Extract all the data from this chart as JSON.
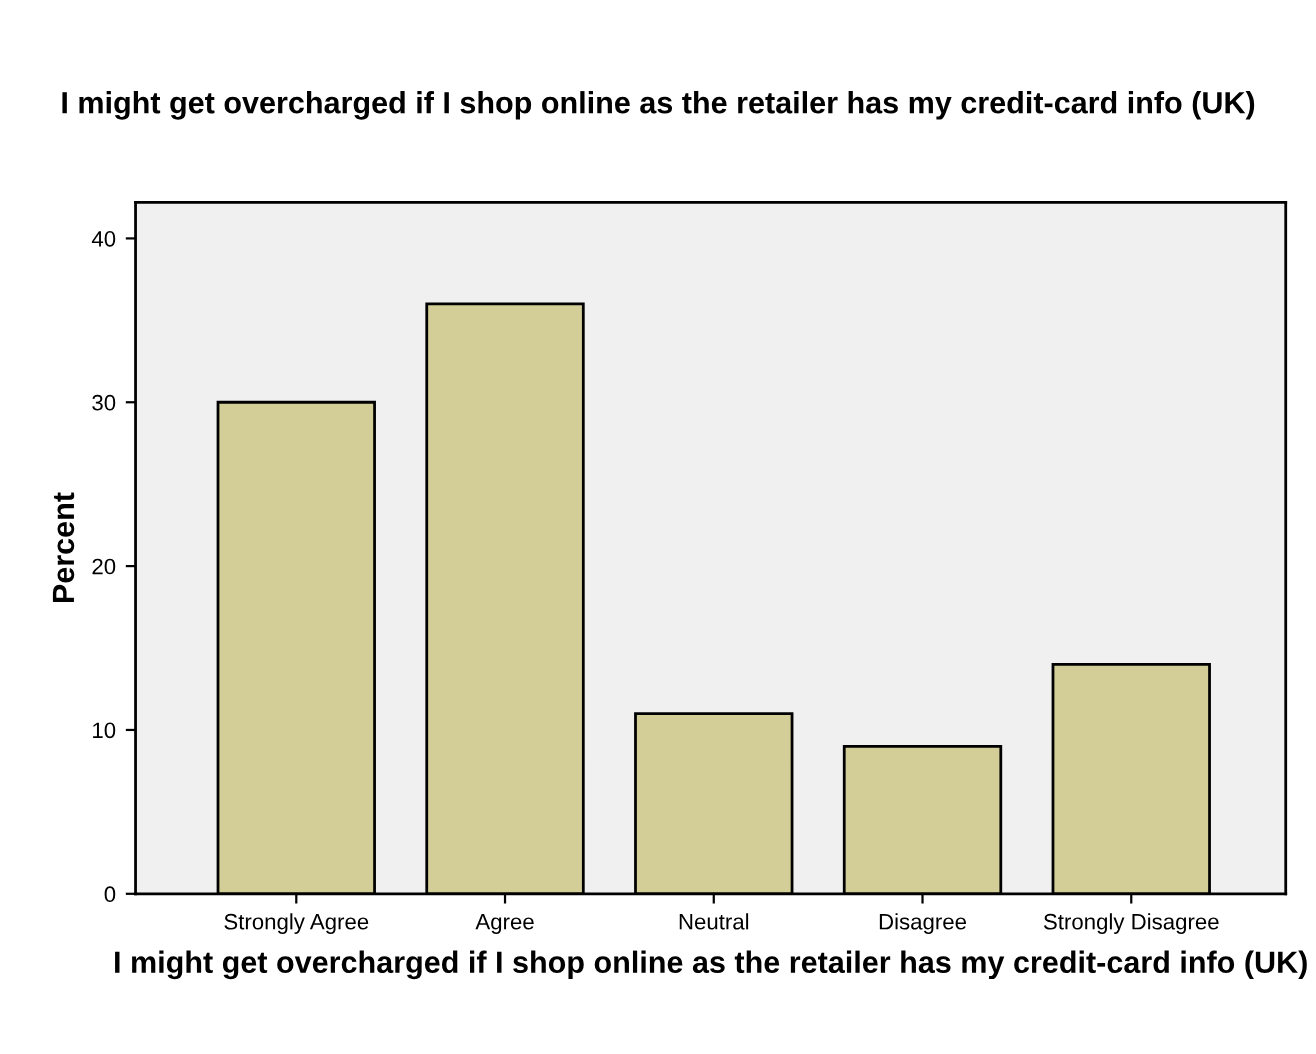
{
  "chart_data": {
    "type": "bar",
    "title": "I might get overcharged if I shop online as the retailer has my credit-card info (UK)",
    "xlabel": "I might get overcharged if I shop online as the retailer has my credit-card info (UK)",
    "ylabel": "Percent",
    "categories": [
      "Strongly Agree",
      "Agree",
      "Neutral",
      "Disagree",
      "Strongly Disagree"
    ],
    "values": [
      30,
      36,
      11,
      9,
      14
    ],
    "color": "#d3ce97",
    "ylim": [
      0,
      42.2
    ],
    "yticks": [
      0,
      10,
      20,
      30,
      40
    ],
    "grid": false
  }
}
